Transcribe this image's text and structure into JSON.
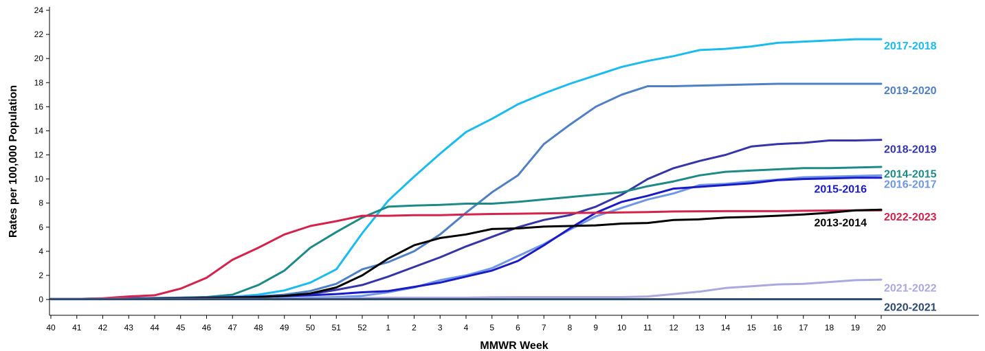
{
  "chart_data": {
    "type": "line",
    "xlabel": "MMWR Week",
    "ylabel": "Rates per 100,000 Population",
    "ylim": [
      0,
      24
    ],
    "yticks": [
      0,
      2,
      4,
      6,
      8,
      10,
      12,
      14,
      16,
      18,
      20,
      22,
      24
    ],
    "categories": [
      "40",
      "41",
      "42",
      "43",
      "44",
      "45",
      "46",
      "47",
      "48",
      "49",
      "50",
      "51",
      "52",
      "1",
      "2",
      "3",
      "4",
      "5",
      "6",
      "7",
      "8",
      "9",
      "10",
      "11",
      "12",
      "13",
      "14",
      "15",
      "16",
      "17",
      "18",
      "19",
      "20"
    ],
    "grid": false,
    "legend": "direct labels at right end of lines",
    "series": [
      {
        "name": "2017-2018",
        "color": "#1ABCEF",
        "values": [
          0.05,
          0.05,
          0.08,
          0.1,
          0.12,
          0.15,
          0.18,
          0.22,
          0.4,
          0.75,
          1.4,
          2.5,
          5.5,
          8.2,
          10.2,
          12.1,
          13.9,
          15.0,
          16.2,
          17.1,
          17.9,
          18.6,
          19.3,
          19.8,
          20.2,
          20.7,
          20.8,
          21.0,
          21.3,
          21.4,
          21.5,
          21.6,
          21.6
        ]
      },
      {
        "name": "2019-2020",
        "color": "#4F7FC4",
        "values": [
          0.05,
          0.05,
          0.05,
          0.08,
          0.1,
          0.12,
          0.15,
          0.18,
          0.25,
          0.4,
          0.7,
          1.3,
          2.5,
          3.1,
          4.0,
          5.4,
          7.2,
          8.9,
          10.3,
          12.9,
          14.5,
          16.0,
          17.0,
          17.7,
          17.7,
          17.75,
          17.8,
          17.85,
          17.9,
          17.9,
          17.9,
          17.9,
          17.9
        ]
      },
      {
        "name": "2018-2019",
        "color": "#3535A9",
        "values": [
          0.05,
          0.05,
          0.05,
          0.08,
          0.1,
          0.12,
          0.15,
          0.18,
          0.22,
          0.3,
          0.45,
          0.8,
          1.2,
          1.9,
          2.7,
          3.5,
          4.4,
          5.2,
          6.0,
          6.6,
          7.0,
          7.7,
          8.7,
          10.0,
          10.9,
          11.5,
          12.0,
          12.7,
          12.9,
          13.0,
          13.2,
          13.2,
          13.25
        ]
      },
      {
        "name": "2014-2015",
        "color": "#1D8A87",
        "values": [
          0.05,
          0.05,
          0.08,
          0.1,
          0.12,
          0.15,
          0.2,
          0.4,
          1.2,
          2.4,
          4.3,
          5.6,
          6.8,
          7.7,
          7.8,
          7.85,
          7.95,
          7.95,
          8.1,
          8.3,
          8.5,
          8.7,
          8.9,
          9.4,
          9.8,
          10.3,
          10.6,
          10.7,
          10.8,
          10.9,
          10.9,
          10.95,
          11.0
        ]
      },
      {
        "name": "2016-2017",
        "color": "#6F97E6",
        "values": [
          0.05,
          0.05,
          0.05,
          0.05,
          0.05,
          0.05,
          0.05,
          0.05,
          0.08,
          0.1,
          0.15,
          0.2,
          0.3,
          0.6,
          1.0,
          1.6,
          2.0,
          2.6,
          3.6,
          4.6,
          5.8,
          6.9,
          7.6,
          8.3,
          8.8,
          9.5,
          9.6,
          9.8,
          9.95,
          10.15,
          10.2,
          10.25,
          10.3
        ]
      },
      {
        "name": "2015-2016",
        "color": "#1A1AC7",
        "values": [
          0.05,
          0.05,
          0.05,
          0.08,
          0.1,
          0.12,
          0.15,
          0.18,
          0.22,
          0.28,
          0.35,
          0.45,
          0.6,
          0.7,
          1.05,
          1.4,
          1.9,
          2.4,
          3.2,
          4.5,
          5.9,
          7.2,
          8.1,
          8.6,
          9.2,
          9.35,
          9.5,
          9.65,
          9.9,
          10.0,
          10.05,
          10.1,
          10.1
        ]
      },
      {
        "name": "2022-2023",
        "color": "#D4224A",
        "values": [
          0.05,
          0.05,
          0.1,
          0.25,
          0.35,
          0.9,
          1.8,
          3.3,
          4.3,
          5.4,
          6.1,
          6.5,
          6.95,
          6.95,
          7.0,
          7.0,
          7.05,
          7.1,
          7.12,
          7.15,
          7.18,
          7.2,
          7.22,
          7.25,
          7.3,
          7.32,
          7.33,
          7.33,
          7.33,
          7.36,
          7.38,
          7.4,
          7.4
        ]
      },
      {
        "name": "2013-2014",
        "color": "#000000",
        "values": [
          0.05,
          0.05,
          0.05,
          0.05,
          0.08,
          0.1,
          0.12,
          0.15,
          0.2,
          0.3,
          0.5,
          1.0,
          2.0,
          3.4,
          4.5,
          5.1,
          5.4,
          5.85,
          5.9,
          6.05,
          6.1,
          6.15,
          6.3,
          6.35,
          6.6,
          6.65,
          6.8,
          6.85,
          6.95,
          7.05,
          7.2,
          7.4,
          7.45
        ]
      },
      {
        "name": "2021-2022",
        "color": "#A9A9E0",
        "values": [
          0.05,
          0.05,
          0.05,
          0.05,
          0.05,
          0.05,
          0.05,
          0.05,
          0.05,
          0.05,
          0.08,
          0.1,
          0.12,
          0.15,
          0.15,
          0.15,
          0.15,
          0.18,
          0.2,
          0.2,
          0.2,
          0.2,
          0.2,
          0.25,
          0.45,
          0.65,
          0.95,
          1.1,
          1.25,
          1.3,
          1.45,
          1.6,
          1.65
        ]
      },
      {
        "name": "2020-2021",
        "color": "#2C4A6C",
        "values": [
          0.02,
          0.02,
          0.02,
          0.02,
          0.02,
          0.02,
          0.02,
          0.02,
          0.02,
          0.02,
          0.02,
          0.02,
          0.02,
          0.02,
          0.02,
          0.02,
          0.02,
          0.02,
          0.02,
          0.02,
          0.02,
          0.02,
          0.02,
          0.02,
          0.02,
          0.02,
          0.02,
          0.02,
          0.02,
          0.02,
          0.02,
          0.02,
          0.02
        ]
      }
    ],
    "labels": [
      {
        "series": "2017-2018",
        "value": 21.1,
        "color": "#1ABCEF",
        "placement": "right"
      },
      {
        "series": "2019-2020",
        "value": 17.4,
        "color": "#4F7FC4",
        "placement": "right"
      },
      {
        "series": "2018-2019",
        "value": 12.5,
        "color": "#3535A9",
        "placement": "right"
      },
      {
        "series": "2014-2015",
        "value": 10.45,
        "color": "#1D8A87",
        "placement": "right"
      },
      {
        "series": "2016-2017",
        "value": 9.6,
        "color": "#6F97E6",
        "placement": "right"
      },
      {
        "series": "2015-2016",
        "value": 9.2,
        "color": "#1A1AC7",
        "placement": "left"
      },
      {
        "series": "2022-2023",
        "value": 6.9,
        "color": "#D4224A",
        "placement": "right"
      },
      {
        "series": "2013-2014",
        "value": 6.4,
        "color": "#000000",
        "placement": "left"
      },
      {
        "series": "2021-2022",
        "value": 1.0,
        "color": "#A9A9E0",
        "placement": "right"
      },
      {
        "series": "2020-2021",
        "value": -0.6,
        "color": "#2C4A6C",
        "placement": "right"
      }
    ]
  }
}
